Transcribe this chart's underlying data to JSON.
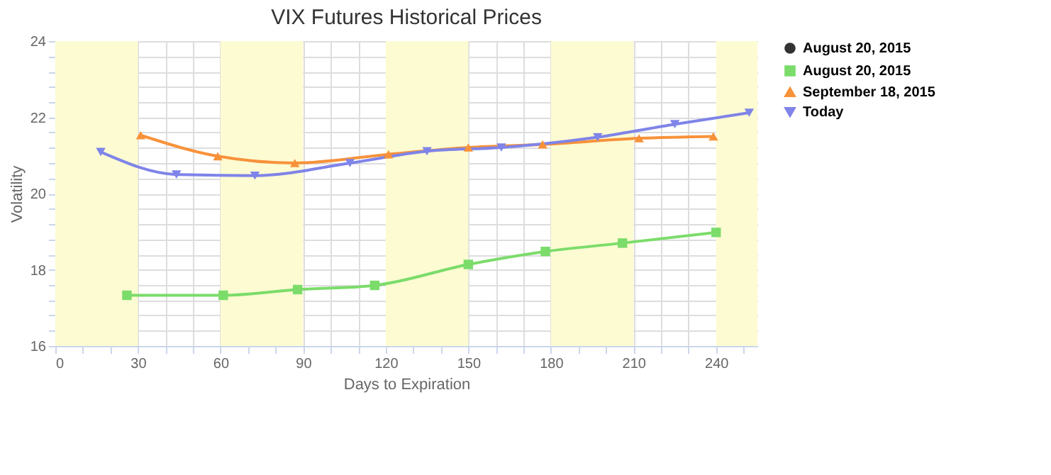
{
  "chart_data": {
    "type": "line",
    "title": "VIX Futures Historical Prices",
    "xlabel": "Days to Expiration",
    "ylabel": "Volatility",
    "xlim": [
      0,
      255
    ],
    "ylim": [
      16,
      24
    ],
    "xticks": [
      0,
      {
        "value": 10,
        "label": null
      },
      {
        "value": 20,
        "label": null
      },
      30,
      {
        "value": 40,
        "label": null
      },
      {
        "value": 50,
        "label": null
      },
      60,
      {
        "value": 70,
        "label": null
      },
      {
        "value": 80,
        "label": null
      },
      90,
      {
        "value": 100,
        "label": null
      },
      {
        "value": 110,
        "label": null
      },
      120,
      {
        "value": 130,
        "label": null
      },
      {
        "value": 140,
        "label": null
      },
      150,
      {
        "value": 160,
        "label": null
      },
      {
        "value": 170,
        "label": null
      },
      180,
      {
        "value": 190,
        "label": null
      },
      {
        "value": 200,
        "label": null
      },
      210,
      {
        "value": 220,
        "label": null
      },
      {
        "value": 230,
        "label": null
      },
      240,
      {
        "value": 250,
        "label": null
      }
    ],
    "yticks": [
      16,
      {
        "value": 16.4,
        "label": null
      },
      {
        "value": 16.8,
        "label": null
      },
      {
        "value": 17.2,
        "label": null
      },
      {
        "value": 17.6,
        "label": null
      },
      18,
      {
        "value": 18.4,
        "label": null
      },
      {
        "value": 18.8,
        "label": null
      },
      {
        "value": 19.2,
        "label": null
      },
      {
        "value": 19.6,
        "label": null
      },
      20,
      {
        "value": 20.4,
        "label": null
      },
      {
        "value": 20.8,
        "label": null
      },
      {
        "value": 21.2,
        "label": null
      },
      {
        "value": 21.6,
        "label": null
      },
      22,
      {
        "value": 22.4,
        "label": null
      },
      {
        "value": 22.8,
        "label": null
      },
      {
        "value": 23.2,
        "label": null
      },
      {
        "value": 23.6,
        "label": null
      },
      24
    ],
    "grid": true,
    "legend": "top right",
    "line_style": "solid",
    "bands": [
      {
        "axis": "x",
        "from": 0,
        "to": 30,
        "color": "#fdfbd2"
      },
      {
        "axis": "x",
        "from": 60,
        "to": 90,
        "color": "#fdfbd2"
      },
      {
        "axis": "x",
        "from": 120,
        "to": 150,
        "color": "#fdfbd2"
      },
      {
        "axis": "x",
        "from": 180,
        "to": 210,
        "color": "#fdfbd2"
      },
      {
        "axis": "x",
        "from": 240,
        "to": 255,
        "color": "#fdfbd2"
      }
    ],
    "series": [
      {
        "name": "August 20, 2015",
        "color": "#333333",
        "marker": "circle"
      },
      {
        "name": "August 20, 2015",
        "color": "#7bdc6a",
        "marker": "square",
        "x": [
          26,
          61,
          88,
          116,
          150,
          178,
          206,
          240
        ],
        "values": [
          17.33,
          17.33,
          17.48,
          17.59,
          18.14,
          18.48,
          18.7,
          18.98
        ]
      },
      {
        "name": "September 18, 2015",
        "color": "#f7923a",
        "marker": "triangle",
        "x": [
          31,
          59,
          87,
          121,
          150,
          177,
          212,
          239
        ],
        "values": [
          21.53,
          20.98,
          20.8,
          21.03,
          21.21,
          21.29,
          21.45,
          21.5
        ]
      },
      {
        "name": "Today",
        "color": "#7f84e8",
        "marker": "triangle-down",
        "x": [
          16.5,
          44,
          72.5,
          107,
          135,
          162,
          197,
          225,
          252
        ],
        "values": [
          21.09,
          20.5,
          20.47,
          20.8,
          21.11,
          21.21,
          21.48,
          21.82,
          22.12
        ]
      }
    ]
  }
}
